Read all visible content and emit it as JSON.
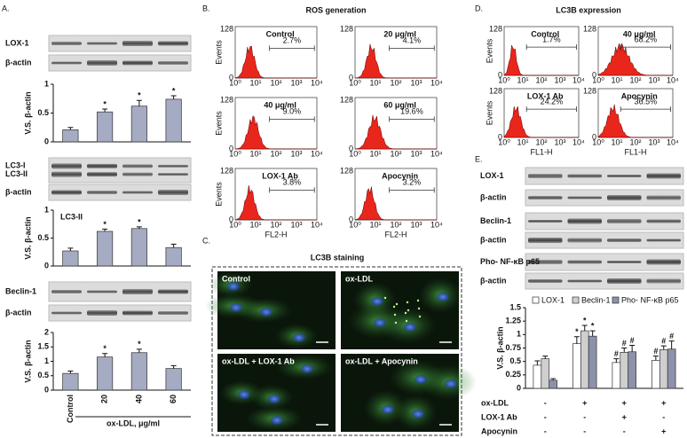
{
  "panel_labels": [
    "A.",
    "B.",
    "C.",
    "D.",
    "E."
  ],
  "panel_a": {
    "blots": [
      {
        "labels": [
          "LOX-1"
        ]
      },
      {
        "labels": [
          "β-actin"
        ]
      },
      {
        "labels": [
          "LC3-I",
          "LC3-II"
        ]
      },
      {
        "labels": [
          "β-actin"
        ]
      },
      {
        "labels": [
          "Beclin-1"
        ]
      },
      {
        "labels": [
          "β-actin"
        ]
      }
    ]
  },
  "panel_b": {
    "title": "ROS generation",
    "ylabel": "Events",
    "yticks": [
      "128",
      "0"
    ],
    "xticks": [
      "10⁰",
      "10¹",
      "10²",
      "10³",
      "10⁴"
    ],
    "xlabel": "FL2-H",
    "plots": [
      {
        "label": "Control",
        "percent": "2.7%"
      },
      {
        "label": "20 μg/ml",
        "percent": "4.1%"
      },
      {
        "label": "40 μg/ml",
        "percent": "9.0%"
      },
      {
        "label": "60 μg/ml",
        "percent": "19.6%"
      },
      {
        "label": "LOX-1 Ab",
        "percent": "3.8%"
      },
      {
        "label": "Apocynin",
        "percent": "3.2%"
      }
    ]
  },
  "panel_c": {
    "title": "LC3B staining",
    "images": [
      "Control",
      "ox-LDL",
      "ox-LDL + LOX-1 Ab",
      "ox-LDL + Apocynin"
    ]
  },
  "panel_d": {
    "title": "LC3B expression",
    "ylabel": "Events",
    "yticks": [
      "128",
      "0"
    ],
    "xticks": [
      "10⁰",
      "10¹",
      "10²",
      "10³",
      "10⁴"
    ],
    "xlabel": "FL1-H",
    "plots": [
      {
        "label": "Control",
        "percent": "1.7%"
      },
      {
        "label": "40 μg/ml",
        "percent": "68.2%"
      },
      {
        "label": "LOX-1 Ab",
        "percent": "24.2%"
      },
      {
        "label": "Apocynin",
        "percent": "36.5%"
      }
    ]
  },
  "panel_e": {
    "blots": [
      {
        "labels": [
          "LOX-1"
        ]
      },
      {
        "labels": [
          "β-actin"
        ]
      },
      {
        "labels": [
          "Beclin-1"
        ]
      },
      {
        "labels": [
          "β-actin"
        ]
      },
      {
        "labels": [
          "Pho- NF-κB p65"
        ]
      },
      {
        "labels": [
          "β-actin"
        ]
      }
    ]
  },
  "chart_data": [
    {
      "type": "bar",
      "ylabel": "V.S. β-actin",
      "color": "#a4abc2",
      "values": [
        0.21,
        0.52,
        0.62,
        0.74
      ],
      "errors": [
        0.04,
        0.05,
        0.1,
        0.06
      ],
      "significance": [
        null,
        "*",
        "*",
        "*"
      ],
      "ylim": [
        0,
        1
      ],
      "yticks": [
        0,
        0.5,
        1
      ]
    },
    {
      "type": "bar",
      "ylabel": "V.S. β-actin",
      "annotation": "LC3-II",
      "color": "#a4abc2",
      "values": [
        0.27,
        0.62,
        0.67,
        0.33
      ],
      "errors": [
        0.05,
        0.04,
        0.03,
        0.06
      ],
      "significance": [
        null,
        "*",
        "*",
        null
      ],
      "ylim": [
        0,
        1
      ],
      "yticks": [
        0,
        0.5,
        1
      ]
    },
    {
      "type": "bar",
      "ylabel": "V.S. β-actin",
      "xlabel": "ox-LDL, μg/ml",
      "categories": [
        "Control",
        "20",
        "40",
        "60"
      ],
      "color": "#a4abc2",
      "values": [
        0.58,
        1.15,
        1.3,
        0.75
      ],
      "errors": [
        0.08,
        0.12,
        0.12,
        0.1
      ],
      "significance": [
        null,
        "*",
        "*",
        null
      ],
      "ylim": [
        0,
        2
      ],
      "yticks": [
        0,
        0.5,
        1,
        1.5,
        2
      ]
    },
    {
      "type": "grouped-bar",
      "ylabel": "V.S. β-actin",
      "ylim": [
        0,
        1.5
      ],
      "yticks": [
        0,
        0.25,
        0.5,
        0.75,
        1,
        1.25,
        1.5
      ],
      "series": [
        {
          "name": "LOX-1",
          "color": "#ffffff",
          "values": [
            0.43,
            0.83,
            0.48,
            0.52
          ],
          "errors": [
            0.08,
            0.13,
            0.07,
            0.08
          ],
          "significance": [
            null,
            "*",
            "#",
            "#"
          ]
        },
        {
          "name": "Beclin-1",
          "color": "#cfcfcf",
          "values": [
            0.55,
            1.07,
            0.67,
            0.72
          ],
          "errors": [
            0.05,
            0.1,
            0.08,
            0.07
          ],
          "significance": [
            null,
            "*",
            "#",
            "#"
          ]
        },
        {
          "name": "Pho- NF-κB p65",
          "color": "#8d92ab",
          "values": [
            0.15,
            0.97,
            0.68,
            0.73
          ],
          "errors": [
            0.03,
            0.1,
            0.12,
            0.15
          ],
          "significance": [
            null,
            "*",
            "#",
            "#"
          ]
        }
      ],
      "conditions": [
        {
          "name": "ox-LDL",
          "values": [
            "-",
            "+",
            "+",
            "+"
          ]
        },
        {
          "name": "LOX-1 Ab",
          "values": [
            "-",
            "-",
            "+",
            "-"
          ]
        },
        {
          "name": "Apocynin",
          "values": [
            "-",
            "-",
            "-",
            "+"
          ]
        }
      ]
    }
  ]
}
